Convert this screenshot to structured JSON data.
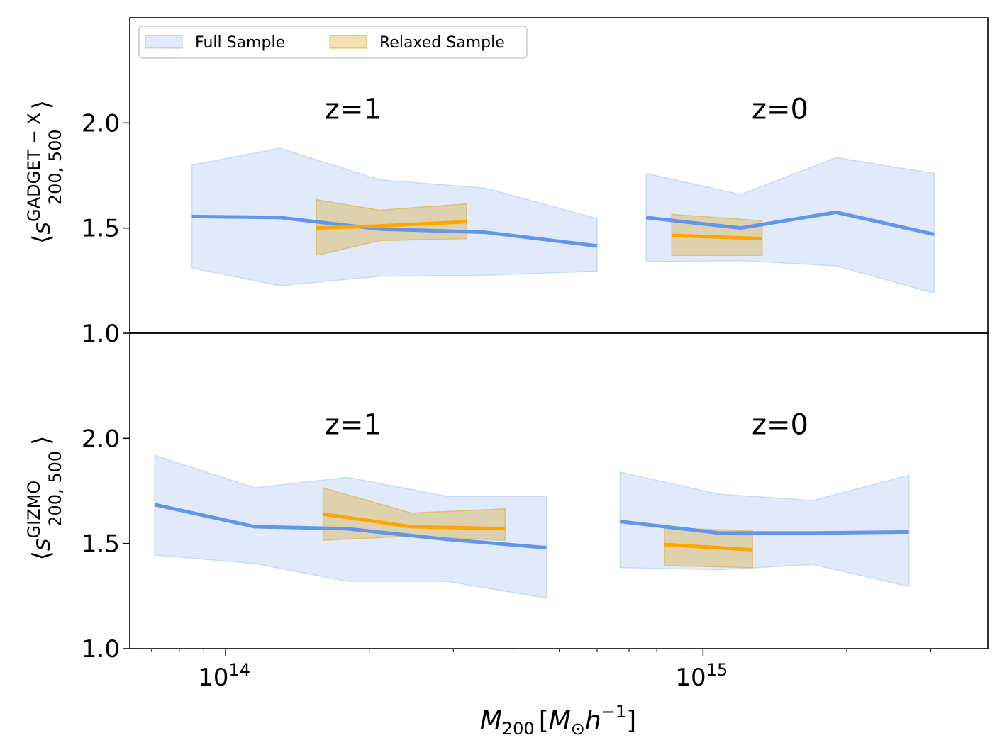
{
  "chart_data": {
    "type": "line",
    "x_scale": "log",
    "xlim": [
      63000000000000,
      3950000000000000
    ],
    "xlabel": "M_200 [M_⊙ h^-1]",
    "xlabel_parts": {
      "main": "M",
      "sub": "200",
      "bracket_open": "[",
      "sun": "M",
      "sun_sub": "⊙",
      "h": "h",
      "exp": "−1",
      "bracket_close": "]"
    },
    "x_ticks": [
      {
        "value": 100000000000000,
        "base": "10",
        "exp": "14"
      },
      {
        "value": 1000000000000000,
        "base": "10",
        "exp": "15"
      }
    ],
    "legend": {
      "position": "top-left",
      "entries": [
        {
          "label": "Full Sample",
          "color": "#6495ED"
        },
        {
          "label": "Relaxed Sample",
          "color": "#DAA520"
        }
      ]
    },
    "panels": [
      {
        "name": "gadget",
        "ylabel": "⟨s_200,500^GADGET−X⟩",
        "ylabel_parts": {
          "open": "⟨",
          "s": "s",
          "sup": "GADGET − X",
          "sub": "200, 500",
          "close": "⟩"
        },
        "ylim": [
          1.0,
          2.5
        ],
        "y_ticks": [
          1.0,
          1.5,
          2.0
        ],
        "y_tick_labels": [
          "1.0",
          "1.5",
          "2.0"
        ],
        "annotations": [
          {
            "text": "z=1",
            "x": 185000000000000,
            "y": 2.02
          },
          {
            "text": "z=0",
            "x": 1450000000000000,
            "y": 2.02
          }
        ],
        "series": [
          {
            "group": "z=1",
            "sample": "Full Sample",
            "color": "#6495ED",
            "x": [
              85000000000000,
              130000000000000,
              210000000000000,
              350000000000000,
              600000000000000
            ],
            "median": [
              1.555,
              1.55,
              1.495,
              1.48,
              1.415
            ],
            "lower": [
              1.31,
              1.225,
              1.27,
              1.275,
              1.295
            ],
            "upper": [
              1.8,
              1.88,
              1.73,
              1.69,
              1.545
            ]
          },
          {
            "group": "z=1",
            "sample": "Relaxed Sample",
            "color": "#FFA500",
            "fill": "#DAA520",
            "x": [
              155000000000000,
              210000000000000,
              320000000000000
            ],
            "median": [
              1.5,
              1.51,
              1.53
            ],
            "lower": [
              1.37,
              1.44,
              1.45
            ],
            "upper": [
              1.635,
              1.585,
              1.615
            ]
          },
          {
            "group": "z=0",
            "sample": "Full Sample",
            "color": "#6495ED",
            "x": [
              760000000000000,
              1200000000000000,
              1900000000000000,
              3050000000000000
            ],
            "median": [
              1.55,
              1.5,
              1.575,
              1.47
            ],
            "lower": [
              1.34,
              1.345,
              1.32,
              1.19
            ],
            "upper": [
              1.76,
              1.66,
              1.835,
              1.76
            ]
          },
          {
            "group": "z=0",
            "sample": "Relaxed Sample",
            "color": "#FFA500",
            "fill": "#DAA520",
            "x": [
              860000000000000,
              1330000000000000
            ],
            "median": [
              1.465,
              1.45
            ],
            "lower": [
              1.37,
              1.37
            ],
            "upper": [
              1.565,
              1.535
            ]
          }
        ]
      },
      {
        "name": "gizmo",
        "ylabel": "⟨s_200,500^GIZMO⟩",
        "ylabel_parts": {
          "open": "⟨",
          "s": "s",
          "sup": "GIZMO",
          "sub": "200, 500",
          "close": "⟩"
        },
        "ylim": [
          1.0,
          2.5
        ],
        "y_ticks": [
          1.0,
          1.5,
          2.0
        ],
        "y_tick_labels": [
          "1.0",
          "1.5",
          "2.0"
        ],
        "annotations": [
          {
            "text": "z=1",
            "x": 185000000000000,
            "y": 2.02
          },
          {
            "text": "z=0",
            "x": 1450000000000000,
            "y": 2.02
          }
        ],
        "series": [
          {
            "group": "z=1",
            "sample": "Full Sample",
            "color": "#6495ED",
            "x": [
              71000000000000,
              115000000000000,
              180000000000000,
              290000000000000,
              470000000000000
            ],
            "median": [
              1.685,
              1.58,
              1.57,
              1.52,
              1.48
            ],
            "lower": [
              1.445,
              1.405,
              1.32,
              1.32,
              1.24
            ],
            "upper": [
              1.92,
              1.765,
              1.815,
              1.725,
              1.725
            ]
          },
          {
            "group": "z=1",
            "sample": "Relaxed Sample",
            "color": "#FFA500",
            "fill": "#DAA520",
            "x": [
              160000000000000,
              245000000000000,
              385000000000000
            ],
            "median": [
              1.64,
              1.58,
              1.57
            ],
            "lower": [
              1.515,
              1.535,
              1.515
            ],
            "upper": [
              1.765,
              1.645,
              1.665
            ]
          },
          {
            "group": "z=0",
            "sample": "Full Sample",
            "color": "#6495ED",
            "x": [
              670000000000000,
              1080000000000000,
              1700000000000000,
              2700000000000000
            ],
            "median": [
              1.605,
              1.55,
              1.55,
              1.555
            ],
            "lower": [
              1.385,
              1.375,
              1.4,
              1.295
            ],
            "upper": [
              1.84,
              1.735,
              1.705,
              1.825
            ]
          },
          {
            "group": "z=0",
            "sample": "Relaxed Sample",
            "color": "#FFA500",
            "fill": "#DAA520",
            "x": [
              830000000000000,
              1270000000000000
            ],
            "median": [
              1.495,
              1.47
            ],
            "lower": [
              1.395,
              1.385
            ],
            "upper": [
              1.575,
              1.56
            ]
          }
        ]
      }
    ]
  }
}
